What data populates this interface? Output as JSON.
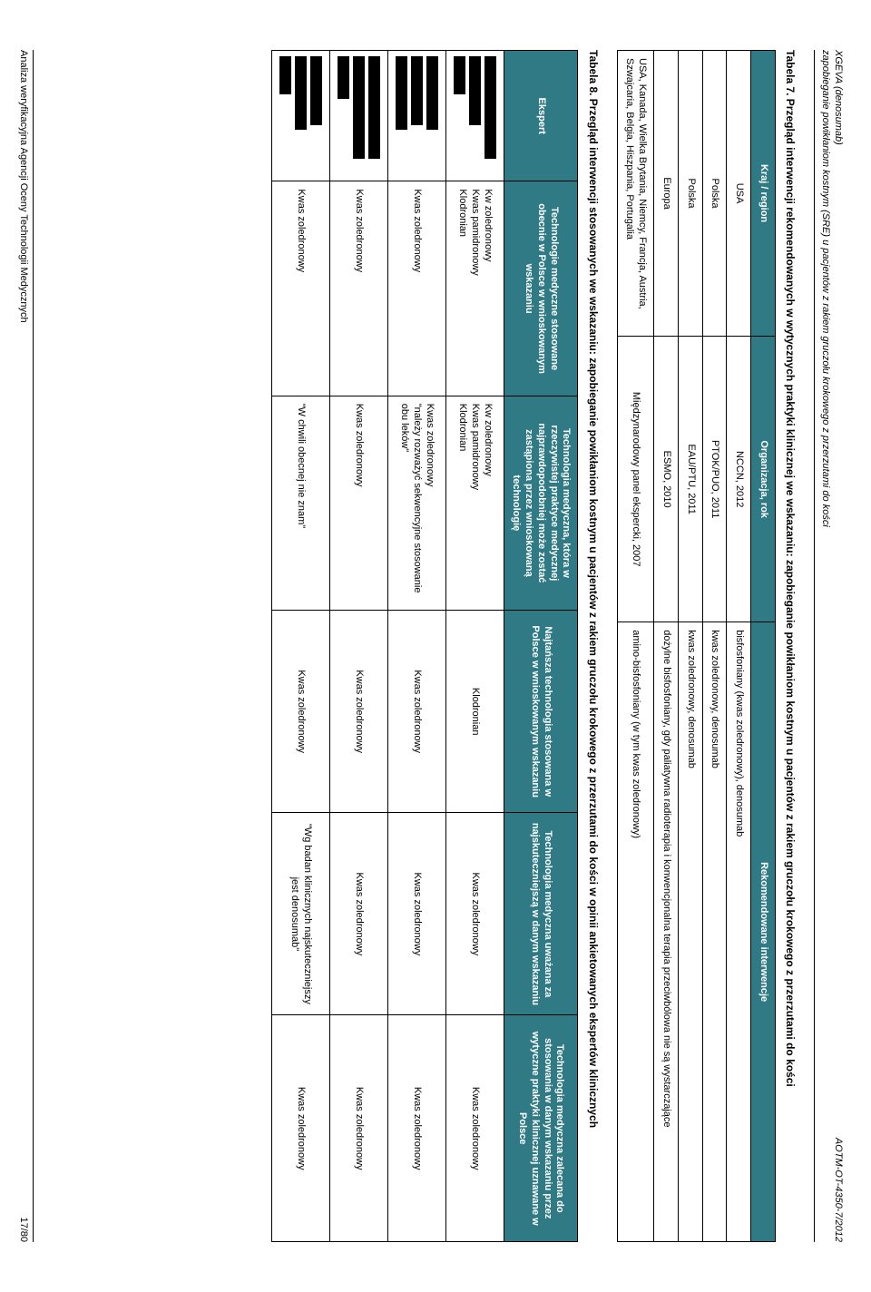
{
  "header": {
    "line1": "XGEVA (denosumab)",
    "line2": "zapobieganie powikłaniom kostnym (SRE) u pacjentów z rakiem gruczołu krokowego z przerzutami do kości",
    "right": "AOTM-OT-4350-7/2012"
  },
  "table7": {
    "caption": "Tabela 7. Przegląd interwencji rekomendowanych w wytycznych praktyki klinicznej we wskazaniu: zapobieganie powikłaniom kostnym u pacjentów z rakiem gruczołu krokowego z przerzutami do kości",
    "cols": [
      "Kraj / region",
      "Organizacja, rok",
      "Rekomendowane interwencje"
    ],
    "rows": [
      [
        "USA",
        "NCCN, 2012",
        "bisfosfoniany (kwas zoledronowy), denosumab"
      ],
      [
        "Polska",
        "PTOK/PUO, 2011",
        "kwas zoledronowy, denosumab"
      ],
      [
        "Polska",
        "EAU/PTU, 2011",
        "kwas zoledronowy, denosumab"
      ],
      [
        "Europa",
        "ESMO, 2010",
        "dożylne bisfosfoniany, gdy paliatywna radioterapia i konwencjonalna terapia przeciwbólowa nie są wystarczające"
      ],
      [
        "USA, Kanada, Wielka Brytania, Niemcy, Francja, Austria, Szwajcaria, Belgia, Hiszpania, Portugalia",
        "Międzynarodowy panel ekspercki, 2007",
        "amino-bisfosfoniany (w tym kwas zoledronowy)"
      ]
    ]
  },
  "table8": {
    "caption": "Tabela 8. Przegląd interwencji stosowanych we wskazaniu: zapobieganie powikłaniom kostnym u pacjentów z rakiem gruczołu krokowego z przerzutami do kości  w opinii ankietowanych ekspertów klinicznych",
    "cols": [
      "Ekspert",
      "Technologie medyczne stosowane obecnie w Polsce w wnioskowanym wskazaniu",
      "Technologia medyczna, która w rzeczywistej praktyce medycznej najprawdopodobniej może zostać zastąpiona przez wnioskowaną technologię",
      "Najtańsza technologia stosowana w Polsce w wnioskowanym wskazaniu",
      "Technologia medyczna uważana za najskuteczniejszą w danym wskazaniu",
      "Technologia medyczna zalecana do stosowania w danym wskazaniu przez wytyczne praktyki klinicznej uznawane w Polsce"
    ],
    "rows": [
      {
        "c1": "Kw zoledronowy\nKwas pamidronowy\nKlodronian",
        "c2": "Kw zoledronowy\nKwas pamidronowy\nKlodronian",
        "c3": "Klodronian",
        "c4": "Kwas zoledronowy",
        "c5": "Kwas zoledronowy"
      },
      {
        "c1": "Kwas zoledronowy",
        "c2": "Kwas zoledronowy\n\"należy rozważyć sekwencyjne stosowanie obu leków\"",
        "c3": "Kwas zoledronowy",
        "c4": "Kwas zoledronowy",
        "c5": "Kwas zoledronowy"
      },
      {
        "c1": "Kwas zoledronowy",
        "c2": "Kwas zoledronowy",
        "c3": "Kwas zoledronowy",
        "c4": "Kwas zoledronowy",
        "c5": "Kwas zoledronowy"
      },
      {
        "c1": "Kwas zoledronowy",
        "c2": "\"W chwili obecnej nie znam\"",
        "c3": "Kwas zoledronowy",
        "c4": "\"Wg badan klinicznych najskuteczniejszy jest denosumab\"",
        "c5": "Kwas zoledronowy"
      }
    ],
    "expert_bars": [
      [
        "b-l",
        "b-m",
        "b-s"
      ],
      [
        "b-m2",
        "b-m",
        "b-m2"
      ],
      [
        "b-l",
        "b-l",
        "b-s2"
      ],
      [
        "b-m",
        "b-m2",
        "b-s"
      ]
    ]
  },
  "footer": {
    "left": "Analiza weryfikacyjna Agencji Oceny Technologii Medycznych",
    "right": "17/80"
  }
}
